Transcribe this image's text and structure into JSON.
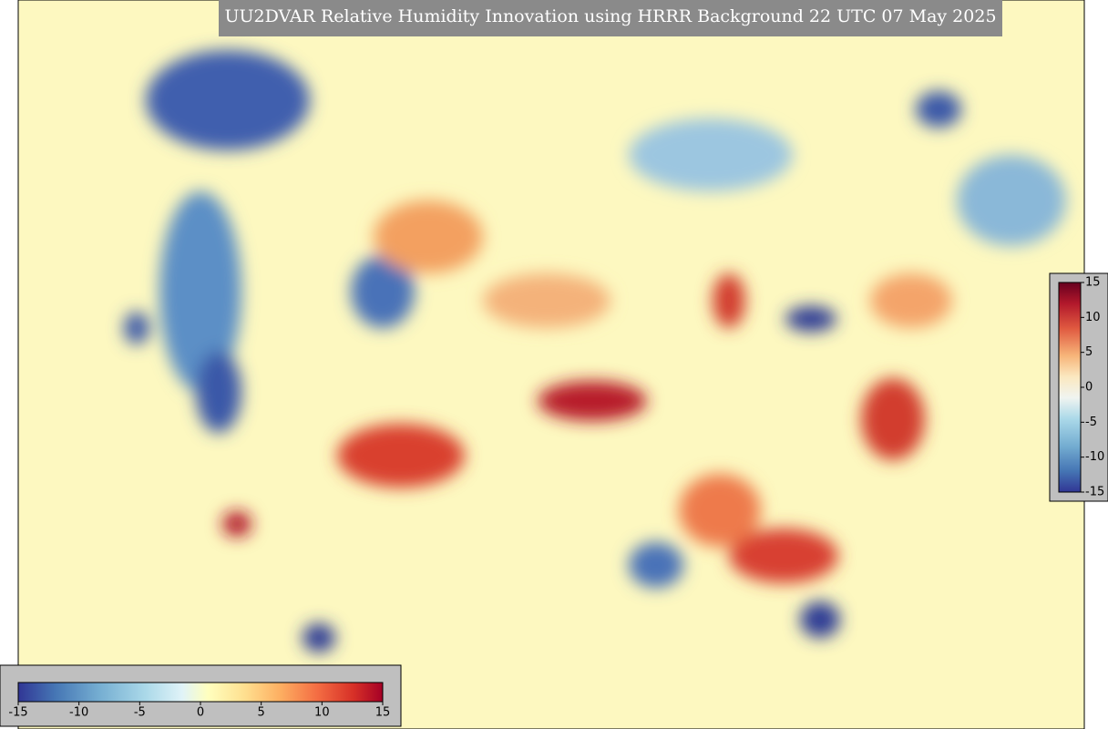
{
  "title": "UU2DVAR Relative Humidity Innovation using HRRR Background 22 UTC 07 May 2025",
  "colorbar_horizontal": {
    "range": [
      -15,
      15
    ],
    "ticks": [
      -15,
      -10,
      -5,
      0,
      5,
      10,
      15
    ]
  },
  "colorbar_vertical": {
    "range": [
      -15,
      15
    ],
    "ticks": [
      15,
      10,
      5,
      0,
      -5,
      -10,
      -15
    ]
  }
}
